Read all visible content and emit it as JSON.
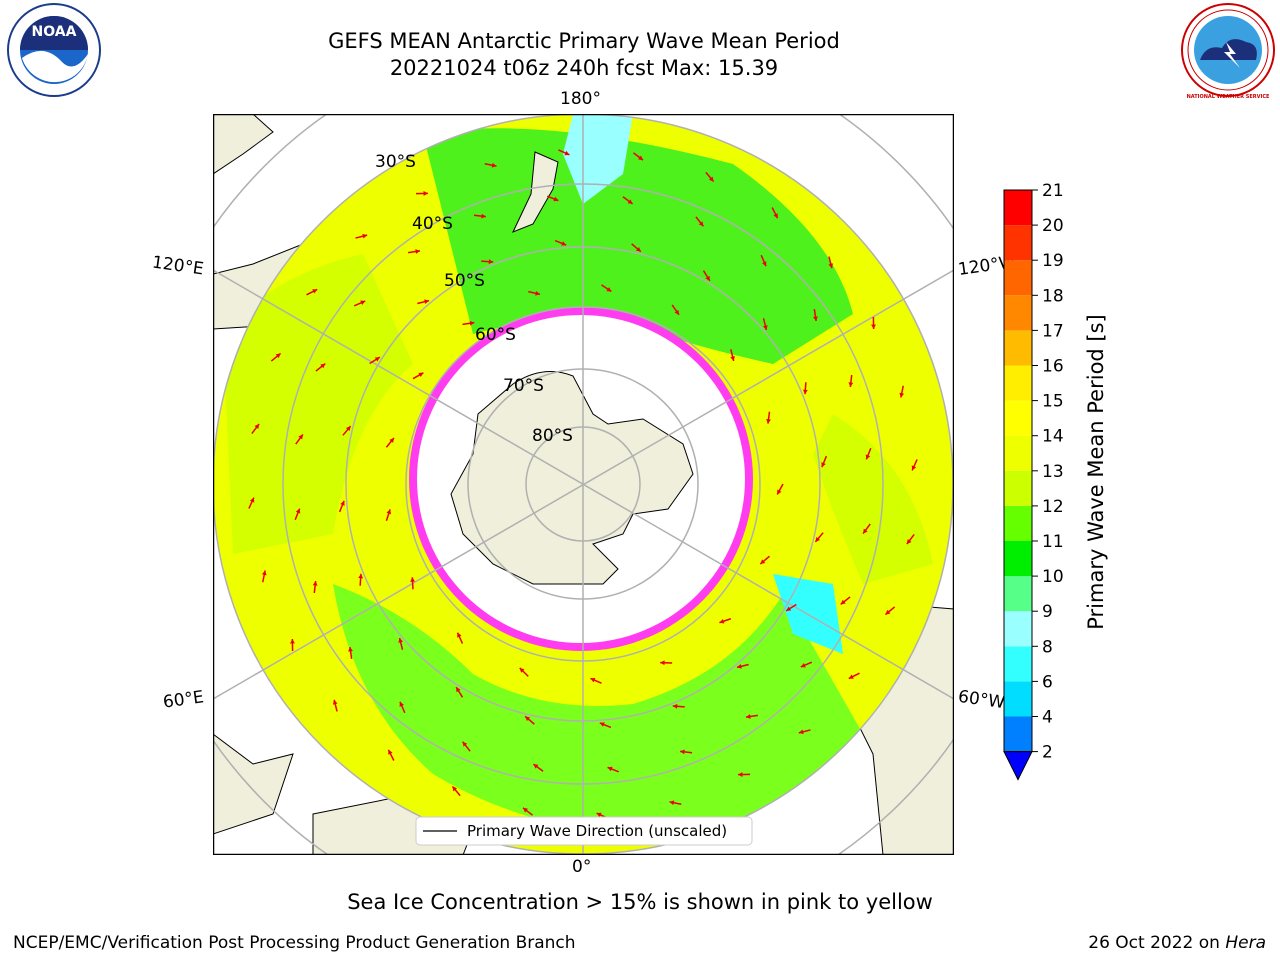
{
  "header": {
    "title_line1": "GEFS MEAN Antarctic Primary Wave Mean Period",
    "title_line2": "20221024 t06z 240h fcst   Max: 15.39"
  },
  "map": {
    "projection": "south-polar-stereographic",
    "longitude_labels": {
      "top": "180°",
      "bottom": "0°",
      "left_upper": "120°E",
      "left_lower": "60°E",
      "right_upper": "120°W",
      "right_lower": "60°W"
    },
    "latitude_labels": [
      "30°S",
      "40°S",
      "50°S",
      "60°S",
      "70°S",
      "80°S"
    ],
    "legend_label": "Primary Wave Direction (unscaled)",
    "colors": {
      "land": "#efefdc",
      "sea_ice_fill": "#ffffff",
      "sea_ice_edge": "#ff3cf0",
      "arrow": "#ee0000",
      "grid": "#b0b0b0"
    }
  },
  "colorbar": {
    "label": "Primary Wave Mean Period [s]",
    "ticks": [
      "2",
      "4",
      "6",
      "8",
      "9",
      "10",
      "11",
      "12",
      "13",
      "14",
      "15",
      "16",
      "17",
      "18",
      "19",
      "20",
      "21"
    ],
    "bin_colors": [
      "#0080ff",
      "#00ddff",
      "#33ffff",
      "#99ffff",
      "#55ff88",
      "#00ee00",
      "#66ff00",
      "#ccff00",
      "#eeff00",
      "#ffff00",
      "#ffee00",
      "#ffbb00",
      "#ff8800",
      "#ff6600",
      "#ff3300",
      "#ff0000"
    ],
    "under_color": "#0000ff"
  },
  "caption": "Sea Ice Concentration > 15% is shown in pink to yellow",
  "footer": {
    "left": "NCEP/EMC/Verification Post Processing Product Generation Branch",
    "right_date": "26 Oct 2022 on",
    "right_host": "Hera"
  },
  "logos": {
    "noaa_text": "NOAA",
    "nws_text": "NATIONAL WEATHER SERVICE"
  }
}
